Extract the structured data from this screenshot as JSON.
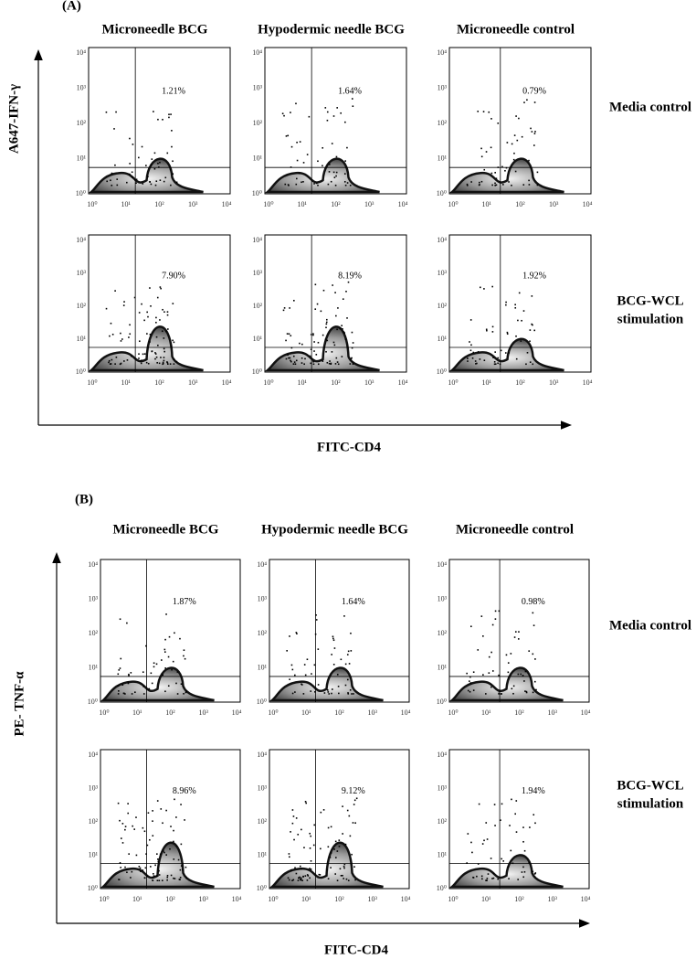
{
  "panels": [
    {
      "label": "(A)",
      "columns": [
        "Microneedle BCG",
        "Hypodermic needle BCG",
        "Microneedle control"
      ],
      "rows": [
        {
          "label": [
            "Media control"
          ],
          "percentages": [
            "1.21%",
            "1.64%",
            "0.79%"
          ]
        },
        {
          "label": [
            "BCG-WCL",
            "stimulation"
          ],
          "percentages": [
            "7.90%",
            "8.19%",
            "1.92%"
          ]
        }
      ],
      "y_axis_label": "A647-IFN-γ",
      "x_axis_label": "FITC-CD4"
    },
    {
      "label": "(B)",
      "columns": [
        "Microneedle BCG",
        "Hypodermic needle BCG",
        "Microneedle control"
      ],
      "rows": [
        {
          "label": [
            "Media control"
          ],
          "percentages": [
            "1.87%",
            "1.64%",
            "0.98%"
          ]
        },
        {
          "label": [
            "BCG-WCL",
            "stimulation"
          ],
          "percentages": [
            "8.96%",
            "9.12%",
            "1.94%"
          ]
        }
      ],
      "y_axis_label": "PE- TNF-α",
      "x_axis_label": "FITC-CD4"
    }
  ],
  "tick_labels": [
    "10⁰",
    "10¹",
    "10²",
    "10³",
    "10⁴"
  ]
}
